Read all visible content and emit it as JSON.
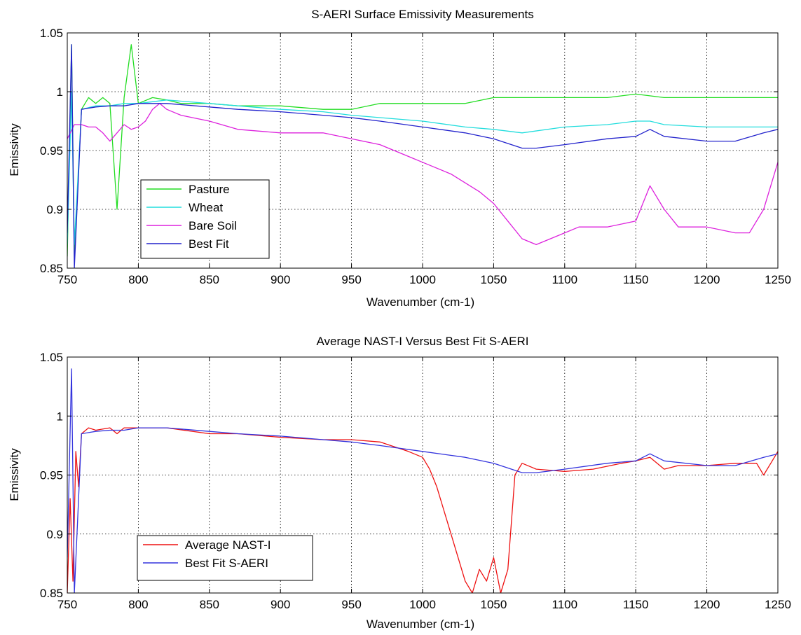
{
  "figure": {
    "background": "#ffffff",
    "axis_color": "#000000",
    "grid_color": "#000000"
  },
  "chart_data": [
    {
      "type": "line",
      "title": "S-AERI Surface Emissivity Measurements",
      "xlabel": "Wavenumber (cm-1)",
      "ylabel": "Emissivity",
      "xlim": [
        750,
        1250
      ],
      "ylim": [
        0.85,
        1.05
      ],
      "xticks": [
        750,
        800,
        850,
        900,
        950,
        1000,
        1050,
        1100,
        1150,
        1200,
        1250
      ],
      "xtick_labels": [
        "750",
        "800",
        "850",
        "900",
        "950",
        "1000",
        "1050",
        "1100",
        "1150",
        "1200",
        "1250"
      ],
      "yticks": [
        0.85,
        0.9,
        0.95,
        1,
        1.05
      ],
      "ytick_labels": [
        "0.85",
        "0.9",
        "0.95",
        "1",
        "1.05"
      ],
      "grid": true,
      "grid_style": "dotted",
      "legend_position": "lower-left",
      "series": [
        {
          "name": "Pasture",
          "color": "#22dd22",
          "x": [
            750,
            753,
            755,
            760,
            765,
            770,
            775,
            780,
            785,
            790,
            795,
            800,
            810,
            820,
            830,
            850,
            870,
            900,
            930,
            950,
            970,
            1000,
            1030,
            1050,
            1080,
            1100,
            1130,
            1150,
            1170,
            1200,
            1230,
            1250
          ],
          "y": [
            0.86,
            1.04,
            0.86,
            0.985,
            0.995,
            0.99,
            0.995,
            0.99,
            0.9,
            0.995,
            1.04,
            0.99,
            0.995,
            0.993,
            0.99,
            0.99,
            0.988,
            0.988,
            0.985,
            0.985,
            0.99,
            0.99,
            0.99,
            0.995,
            0.995,
            0.995,
            0.995,
            0.998,
            0.995,
            0.995,
            0.995,
            0.995
          ]
        },
        {
          "name": "Wheat",
          "color": "#22dddd",
          "x": [
            750,
            753,
            755,
            760,
            770,
            780,
            790,
            800,
            820,
            850,
            870,
            900,
            930,
            950,
            970,
            1000,
            1030,
            1050,
            1070,
            1100,
            1130,
            1150,
            1160,
            1170,
            1200,
            1220,
            1240,
            1250
          ],
          "y": [
            0.87,
            1.0,
            0.87,
            0.985,
            0.988,
            0.988,
            0.99,
            0.99,
            0.993,
            0.99,
            0.988,
            0.985,
            0.983,
            0.98,
            0.978,
            0.975,
            0.97,
            0.968,
            0.965,
            0.97,
            0.972,
            0.975,
            0.975,
            0.972,
            0.97,
            0.97,
            0.97,
            0.97
          ]
        },
        {
          "name": "Bare Soil",
          "color": "#dd22dd",
          "x": [
            750,
            755,
            760,
            765,
            770,
            775,
            780,
            785,
            790,
            795,
            800,
            805,
            810,
            815,
            820,
            830,
            850,
            870,
            900,
            930,
            950,
            970,
            990,
            1000,
            1020,
            1040,
            1050,
            1060,
            1070,
            1080,
            1090,
            1100,
            1110,
            1130,
            1150,
            1160,
            1170,
            1180,
            1200,
            1220,
            1230,
            1240,
            1250
          ],
          "y": [
            0.96,
            0.972,
            0.972,
            0.97,
            0.97,
            0.965,
            0.958,
            0.965,
            0.972,
            0.968,
            0.97,
            0.975,
            0.985,
            0.99,
            0.985,
            0.98,
            0.975,
            0.968,
            0.965,
            0.965,
            0.96,
            0.955,
            0.945,
            0.94,
            0.93,
            0.915,
            0.905,
            0.89,
            0.875,
            0.87,
            0.875,
            0.88,
            0.885,
            0.885,
            0.89,
            0.92,
            0.9,
            0.885,
            0.885,
            0.88,
            0.88,
            0.9,
            0.94
          ]
        },
        {
          "name": "Best Fit",
          "color": "#2222cc",
          "x": [
            750,
            753,
            755,
            760,
            770,
            780,
            790,
            800,
            820,
            850,
            870,
            900,
            930,
            950,
            970,
            1000,
            1030,
            1050,
            1070,
            1080,
            1100,
            1130,
            1150,
            1160,
            1170,
            1200,
            1220,
            1240,
            1250
          ],
          "y": [
            0.88,
            1.04,
            0.85,
            0.985,
            0.987,
            0.988,
            0.988,
            0.99,
            0.99,
            0.987,
            0.985,
            0.983,
            0.98,
            0.978,
            0.975,
            0.97,
            0.965,
            0.96,
            0.952,
            0.952,
            0.955,
            0.96,
            0.962,
            0.968,
            0.962,
            0.958,
            0.958,
            0.965,
            0.968
          ]
        }
      ]
    },
    {
      "type": "line",
      "title": "Average NAST-I Versus Best Fit S-AERI",
      "xlabel": "Wavenumber (cm-1)",
      "ylabel": "Emissivity",
      "xlim": [
        750,
        1250
      ],
      "ylim": [
        0.85,
        1.05
      ],
      "xticks": [
        750,
        800,
        850,
        900,
        950,
        1000,
        1050,
        1100,
        1150,
        1200,
        1250
      ],
      "xtick_labels": [
        "750",
        "800",
        "850",
        "900",
        "950",
        "1000",
        "1050",
        "1100",
        "1150",
        "1200",
        "1250"
      ],
      "yticks": [
        0.85,
        0.9,
        0.95,
        1,
        1.05
      ],
      "ytick_labels": [
        "0.85",
        "0.9",
        "0.95",
        "1",
        "1.05"
      ],
      "grid": true,
      "grid_style": "dotted",
      "legend_position": "lower-left",
      "series": [
        {
          "name": "Average NAST-I",
          "color": "#ee1111",
          "x": [
            750,
            752,
            754,
            756,
            758,
            760,
            765,
            770,
            780,
            785,
            790,
            795,
            800,
            810,
            820,
            850,
            870,
            900,
            930,
            950,
            970,
            990,
            1000,
            1005,
            1010,
            1015,
            1020,
            1025,
            1030,
            1035,
            1040,
            1045,
            1050,
            1055,
            1060,
            1065,
            1070,
            1080,
            1100,
            1120,
            1140,
            1150,
            1160,
            1170,
            1180,
            1200,
            1220,
            1235,
            1240,
            1245,
            1250
          ],
          "y": [
            0.85,
            0.93,
            0.86,
            0.97,
            0.94,
            0.985,
            0.99,
            0.988,
            0.99,
            0.985,
            0.99,
            0.99,
            0.99,
            0.99,
            0.99,
            0.985,
            0.985,
            0.982,
            0.98,
            0.98,
            0.978,
            0.97,
            0.965,
            0.955,
            0.94,
            0.92,
            0.9,
            0.88,
            0.86,
            0.85,
            0.87,
            0.86,
            0.88,
            0.85,
            0.87,
            0.95,
            0.96,
            0.955,
            0.953,
            0.955,
            0.96,
            0.962,
            0.965,
            0.955,
            0.958,
            0.958,
            0.96,
            0.96,
            0.95,
            0.96,
            0.97
          ]
        },
        {
          "name": "Best Fit S-AERI",
          "color": "#3333dd",
          "x": [
            750,
            753,
            755,
            760,
            770,
            780,
            790,
            800,
            820,
            850,
            870,
            900,
            930,
            950,
            970,
            1000,
            1030,
            1050,
            1070,
            1080,
            1100,
            1130,
            1150,
            1160,
            1170,
            1200,
            1220,
            1240,
            1250
          ],
          "y": [
            0.88,
            1.04,
            0.85,
            0.985,
            0.987,
            0.988,
            0.988,
            0.99,
            0.99,
            0.987,
            0.985,
            0.983,
            0.98,
            0.978,
            0.975,
            0.97,
            0.965,
            0.96,
            0.952,
            0.952,
            0.955,
            0.96,
            0.962,
            0.968,
            0.962,
            0.958,
            0.958,
            0.965,
            0.968
          ]
        }
      ]
    }
  ]
}
